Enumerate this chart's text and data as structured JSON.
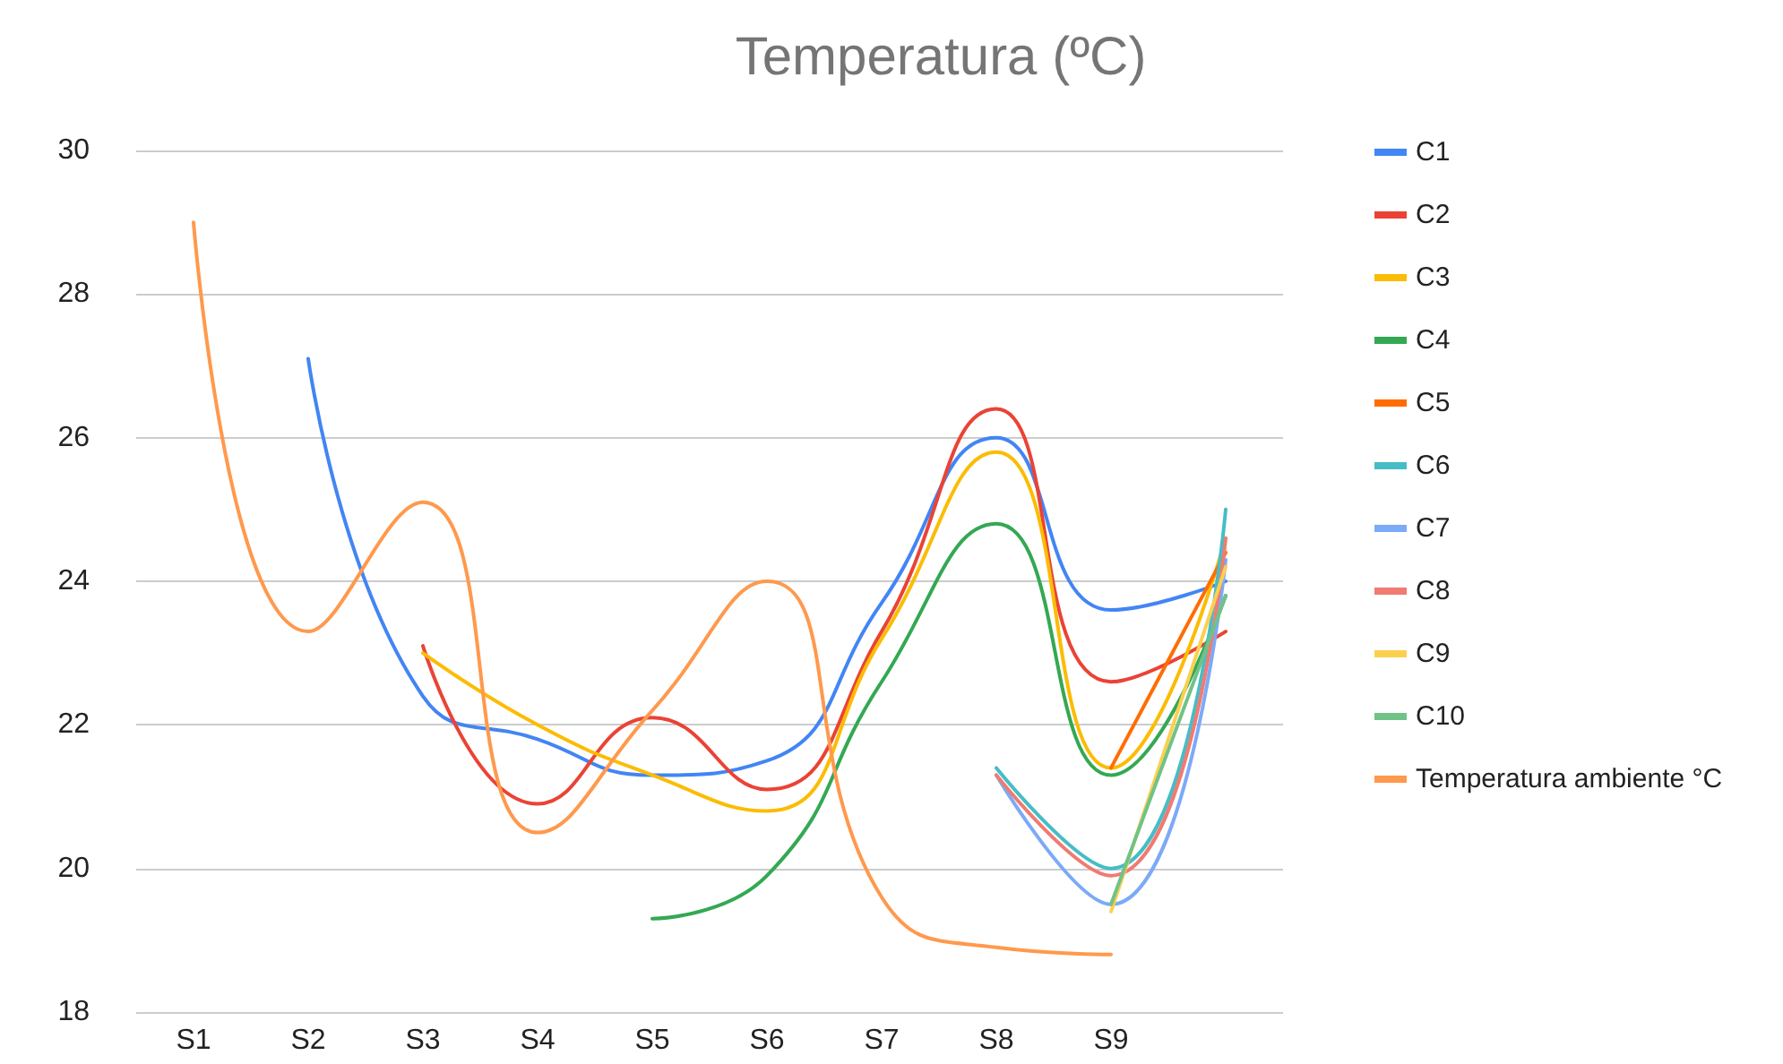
{
  "chart_data": {
    "type": "line",
    "title": "Temperatura (ºC)",
    "categories": [
      "S1",
      "S2",
      "S3",
      "S4",
      "S5",
      "S6",
      "S7",
      "S8",
      "S9",
      null
    ],
    "series": [
      {
        "name": "C1",
        "color": "#4285f4",
        "values": [
          null,
          27.1,
          22.4,
          21.8,
          21.3,
          21.5,
          23.7,
          26.0,
          23.6,
          24.0
        ]
      },
      {
        "name": "C2",
        "color": "#ea4335",
        "values": [
          null,
          null,
          23.1,
          20.9,
          22.1,
          21.1,
          23.3,
          26.4,
          22.6,
          23.3
        ]
      },
      {
        "name": "C3",
        "color": "#fbbc04",
        "values": [
          null,
          null,
          23.0,
          22.0,
          21.3,
          20.8,
          23.2,
          25.8,
          21.4,
          24.6
        ]
      },
      {
        "name": "C4",
        "color": "#34a853",
        "values": [
          null,
          null,
          null,
          null,
          19.3,
          19.9,
          22.6,
          24.8,
          21.3,
          23.8
        ]
      },
      {
        "name": "C5",
        "color": "#ff6d01",
        "values": [
          null,
          null,
          null,
          null,
          null,
          null,
          null,
          null,
          21.4,
          24.4
        ]
      },
      {
        "name": "C6",
        "color": "#46bdc6",
        "values": [
          null,
          null,
          null,
          null,
          null,
          null,
          null,
          21.4,
          20.0,
          25.0
        ]
      },
      {
        "name": "C7",
        "color": "#7baaf7",
        "values": [
          null,
          null,
          null,
          null,
          null,
          null,
          null,
          21.3,
          19.5,
          24.3
        ]
      },
      {
        "name": "C8",
        "color": "#f07b72",
        "values": [
          null,
          null,
          null,
          null,
          null,
          null,
          null,
          21.3,
          19.9,
          24.6
        ]
      },
      {
        "name": "C9",
        "color": "#fcd04f",
        "values": [
          null,
          null,
          null,
          null,
          null,
          null,
          null,
          null,
          19.4,
          24.2
        ]
      },
      {
        "name": "C10",
        "color": "#71c287",
        "values": [
          null,
          null,
          null,
          null,
          null,
          null,
          null,
          null,
          19.5,
          23.8
        ]
      },
      {
        "name": "Temperatura ambiente °C",
        "color": "#ff994d",
        "values": [
          29.0,
          23.3,
          25.1,
          20.5,
          22.2,
          24.0,
          19.6,
          18.9,
          18.8,
          null
        ]
      }
    ],
    "ylim": [
      18,
      30
    ],
    "yticks": [
      18,
      20,
      22,
      24,
      26,
      28,
      30
    ],
    "grid": "y",
    "legend": "right",
    "marker": "none"
  }
}
